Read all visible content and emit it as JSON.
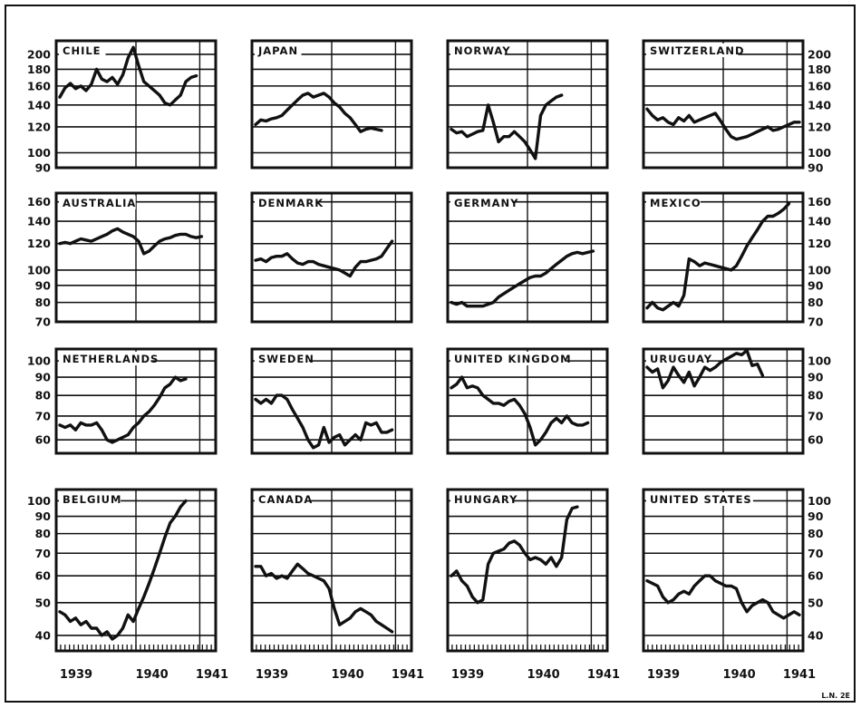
{
  "figure": {
    "x_tick_labels": [
      "1939",
      "1940",
      "1941"
    ],
    "corner_mark": "L.N. 2E"
  },
  "chart_data": [
    {
      "type": "line",
      "title": "CHILE",
      "scale": "log",
      "ylim": [
        90,
        220
      ],
      "yticks": [
        200,
        180,
        160,
        140,
        120,
        100,
        90
      ],
      "ytick_labels_left": [
        "200",
        "180",
        "160",
        "140",
        "120",
        "100",
        "90"
      ],
      "ytick_labels_right": [],
      "x": [
        0,
        1,
        2,
        3,
        4,
        5,
        6,
        7,
        8,
        9,
        10,
        11,
        12,
        13,
        14,
        15,
        16,
        17,
        18,
        19,
        20,
        21,
        22,
        23,
        24,
        25,
        26,
        27,
        28,
        29
      ],
      "values": [
        148,
        158,
        163,
        157,
        160,
        155,
        162,
        180,
        168,
        165,
        170,
        162,
        173,
        195,
        210,
        185,
        165,
        160,
        155,
        150,
        142,
        140,
        145,
        150,
        165,
        170,
        172,
        null,
        null,
        null
      ]
    },
    {
      "type": "line",
      "title": "JAPAN",
      "scale": "log",
      "ylim": [
        90,
        220
      ],
      "yticks": [
        200,
        180,
        160,
        140,
        120,
        100,
        90
      ],
      "ytick_labels_left": [],
      "ytick_labels_right": [],
      "x": [
        0,
        1,
        2,
        3,
        4,
        5,
        6,
        7,
        8,
        9,
        10,
        11,
        12,
        13,
        14,
        15,
        16,
        17,
        18,
        19,
        20,
        21,
        22,
        23,
        24,
        25,
        26,
        27,
        28,
        29
      ],
      "values": [
        122,
        126,
        125,
        127,
        128,
        130,
        135,
        140,
        145,
        150,
        152,
        148,
        150,
        152,
        148,
        142,
        138,
        132,
        128,
        122,
        116,
        118,
        119,
        118,
        117,
        null,
        null,
        null,
        null,
        null
      ]
    },
    {
      "type": "line",
      "title": "NORWAY",
      "scale": "log",
      "ylim": [
        90,
        220
      ],
      "yticks": [
        200,
        180,
        160,
        140,
        120,
        100,
        90
      ],
      "ytick_labels_left": [],
      "ytick_labels_right": [],
      "x": [
        0,
        1,
        2,
        3,
        4,
        5,
        6,
        7,
        8,
        9,
        10,
        11,
        12,
        13,
        14,
        15,
        16,
        17,
        18,
        19,
        20,
        21,
        22,
        23,
        24,
        25,
        26,
        27,
        28,
        29
      ],
      "values": [
        118,
        115,
        116,
        112,
        114,
        116,
        117,
        140,
        124,
        108,
        112,
        112,
        116,
        112,
        108,
        102,
        96,
        130,
        140,
        144,
        148,
        150,
        null,
        null,
        null,
        null,
        null,
        null,
        null,
        null
      ]
    },
    {
      "type": "line",
      "title": "SWITZERLAND",
      "scale": "log",
      "ylim": [
        90,
        220
      ],
      "yticks": [
        200,
        180,
        160,
        140,
        120,
        100,
        90
      ],
      "ytick_labels_left": [],
      "ytick_labels_right": [
        "200",
        "180",
        "160",
        "140",
        "120",
        "100",
        "90"
      ],
      "x": [
        0,
        1,
        2,
        3,
        4,
        5,
        6,
        7,
        8,
        9,
        10,
        11,
        12,
        13,
        14,
        15,
        16,
        17,
        18,
        19,
        20,
        21,
        22,
        23,
        24,
        25,
        26,
        27,
        28,
        29
      ],
      "values": [
        136,
        130,
        126,
        128,
        124,
        122,
        128,
        125,
        130,
        124,
        126,
        128,
        130,
        132,
        125,
        118,
        112,
        110,
        111,
        112,
        114,
        116,
        118,
        120,
        117,
        118,
        120,
        122,
        124,
        124
      ]
    },
    {
      "type": "line",
      "title": "AUSTRALIA",
      "scale": "log",
      "ylim": [
        70,
        170
      ],
      "yticks": [
        160,
        140,
        120,
        100,
        90,
        80,
        70
      ],
      "ytick_labels_left": [
        "160",
        "140",
        "120",
        "100",
        "90",
        "80",
        "70"
      ],
      "ytick_labels_right": [],
      "x": [
        0,
        1,
        2,
        3,
        4,
        5,
        6,
        7,
        8,
        9,
        10,
        11,
        12,
        13,
        14,
        15,
        16,
        17,
        18,
        19,
        20,
        21,
        22,
        23,
        24,
        25,
        26,
        27,
        28,
        29
      ],
      "values": [
        120,
        121,
        120,
        122,
        124,
        123,
        122,
        124,
        126,
        128,
        131,
        133,
        130,
        128,
        126,
        122,
        112,
        114,
        118,
        122,
        124,
        125,
        127,
        128,
        128,
        126,
        125,
        126,
        null,
        null
      ]
    },
    {
      "type": "line",
      "title": "DENMARK",
      "scale": "log",
      "ylim": [
        70,
        170
      ],
      "yticks": [
        160,
        140,
        120,
        100,
        90,
        80,
        70
      ],
      "ytick_labels_left": [],
      "ytick_labels_right": [],
      "x": [
        0,
        1,
        2,
        3,
        4,
        5,
        6,
        7,
        8,
        9,
        10,
        11,
        12,
        13,
        14,
        15,
        16,
        17,
        18,
        19,
        20,
        21,
        22,
        23,
        24,
        25,
        26,
        27,
        28,
        29
      ],
      "values": [
        107,
        108,
        106,
        109,
        110,
        110,
        112,
        108,
        105,
        104,
        106,
        106,
        104,
        103,
        102,
        101,
        100,
        98,
        96,
        102,
        106,
        106,
        107,
        108,
        110,
        116,
        122,
        null,
        null,
        null
      ]
    },
    {
      "type": "line",
      "title": "GERMANY",
      "scale": "log",
      "ylim": [
        70,
        170
      ],
      "yticks": [
        160,
        140,
        120,
        100,
        90,
        80,
        70
      ],
      "ytick_labels_left": [],
      "ytick_labels_right": [],
      "x": [
        0,
        1,
        2,
        3,
        4,
        5,
        6,
        7,
        8,
        9,
        10,
        11,
        12,
        13,
        14,
        15,
        16,
        17,
        18,
        19,
        20,
        21,
        22,
        23,
        24,
        25,
        26,
        27,
        28,
        29
      ],
      "values": [
        80,
        79,
        80,
        78,
        78,
        78,
        78,
        79,
        80,
        83,
        85,
        87,
        89,
        91,
        93,
        95,
        96,
        96,
        98,
        101,
        104,
        107,
        110,
        112,
        113,
        112,
        113,
        114,
        null,
        null
      ]
    },
    {
      "type": "line",
      "title": "MEXICO",
      "scale": "log",
      "ylim": [
        70,
        170
      ],
      "yticks": [
        160,
        140,
        120,
        100,
        90,
        80,
        70
      ],
      "ytick_labels_left": [],
      "ytick_labels_right": [
        "160",
        "140",
        "120",
        "100",
        "90",
        "80",
        "70"
      ],
      "x": [
        0,
        1,
        2,
        3,
        4,
        5,
        6,
        7,
        8,
        9,
        10,
        11,
        12,
        13,
        14,
        15,
        16,
        17,
        18,
        19,
        20,
        21,
        22,
        23,
        24,
        25,
        26,
        27,
        28,
        29
      ],
      "values": [
        77,
        80,
        77,
        76,
        78,
        80,
        78,
        84,
        108,
        106,
        103,
        105,
        104,
        103,
        102,
        101,
        100,
        103,
        110,
        118,
        125,
        132,
        140,
        145,
        145,
        148,
        152,
        158,
        null,
        null
      ]
    },
    {
      "type": "line",
      "title": "NETHERLANDS",
      "scale": "log",
      "ylim": [
        55,
        108
      ],
      "yticks": [
        100,
        90,
        80,
        70,
        60
      ],
      "ytick_labels_left": [
        "100",
        "90",
        "80",
        "70",
        "60"
      ],
      "ytick_labels_right": [],
      "x": [
        0,
        1,
        2,
        3,
        4,
        5,
        6,
        7,
        8,
        9,
        10,
        11,
        12,
        13,
        14,
        15,
        16,
        17,
        18,
        19,
        20,
        21,
        22,
        23,
        24,
        25,
        26,
        27,
        28,
        29
      ],
      "values": [
        66,
        65,
        66,
        64,
        67,
        66,
        66,
        67,
        64,
        60,
        59,
        60,
        61,
        62,
        65,
        67,
        70,
        72,
        75,
        79,
        84,
        86,
        90,
        88,
        89,
        null,
        null,
        null,
        null,
        null
      ]
    },
    {
      "type": "line",
      "title": "SWEDEN",
      "scale": "log",
      "ylim": [
        55,
        108
      ],
      "yticks": [
        100,
        90,
        80,
        70,
        60
      ],
      "ytick_labels_left": [],
      "ytick_labels_right": [],
      "x": [
        0,
        1,
        2,
        3,
        4,
        5,
        6,
        7,
        8,
        9,
        10,
        11,
        12,
        13,
        14,
        15,
        16,
        17,
        18,
        19,
        20,
        21,
        22,
        23,
        24,
        25,
        26,
        27,
        28,
        29
      ],
      "values": [
        78,
        76,
        78,
        76,
        80,
        80,
        78,
        73,
        69,
        65,
        60,
        57,
        58,
        65,
        59,
        61,
        62,
        58,
        60,
        62,
        60,
        67,
        66,
        67,
        63,
        63,
        64,
        null,
        null,
        null
      ]
    },
    {
      "type": "line",
      "title": "UNITED KINGDOM",
      "scale": "log",
      "ylim": [
        55,
        108
      ],
      "yticks": [
        100,
        90,
        80,
        70,
        60
      ],
      "ytick_labels_left": [],
      "ytick_labels_right": [],
      "x": [
        0,
        1,
        2,
        3,
        4,
        5,
        6,
        7,
        8,
        9,
        10,
        11,
        12,
        13,
        14,
        15,
        16,
        17,
        18,
        19,
        20,
        21,
        22,
        23,
        24,
        25,
        26,
        27,
        28,
        29
      ],
      "values": [
        84,
        86,
        90,
        84,
        85,
        84,
        80,
        78,
        76,
        76,
        75,
        77,
        78,
        75,
        71,
        65,
        58,
        60,
        63,
        67,
        69,
        67,
        70,
        67,
        66,
        66,
        67,
        null,
        null,
        null
      ]
    },
    {
      "type": "line",
      "title": "URUGUAY",
      "scale": "log",
      "ylim": [
        55,
        108
      ],
      "yticks": [
        100,
        90,
        80,
        70,
        60
      ],
      "ytick_labels_left": [],
      "ytick_labels_right": [
        "100",
        "90",
        "80",
        "70",
        "60"
      ],
      "x": [
        0,
        1,
        2,
        3,
        4,
        5,
        6,
        7,
        8,
        9,
        10,
        11,
        12,
        13,
        14,
        15,
        16,
        17,
        18,
        19,
        20,
        21,
        22,
        23,
        24,
        25,
        26,
        27,
        28,
        29
      ],
      "values": [
        96,
        93,
        95,
        84,
        88,
        96,
        91,
        87,
        93,
        85,
        90,
        96,
        94,
        96,
        99,
        101,
        103,
        105,
        104,
        107,
        97,
        98,
        91,
        null,
        null,
        null,
        null,
        null,
        null,
        null
      ]
    },
    {
      "type": "line",
      "title": "BELGIUM",
      "scale": "log",
      "ylim": [
        36,
        108
      ],
      "yticks": [
        100,
        90,
        80,
        70,
        60,
        50,
        40
      ],
      "ytick_labels_left": [
        "100",
        "90",
        "80",
        "70",
        "60",
        "50",
        "40"
      ],
      "ytick_labels_right": [],
      "x": [
        0,
        1,
        2,
        3,
        4,
        5,
        6,
        7,
        8,
        9,
        10,
        11,
        12,
        13,
        14,
        15,
        16,
        17,
        18,
        19,
        20,
        21,
        22,
        23,
        24,
        25,
        26,
        27,
        28,
        29
      ],
      "values": [
        47,
        46,
        44,
        45,
        43,
        44,
        42,
        42,
        40,
        41,
        39,
        40,
        42,
        46,
        44,
        48,
        52,
        57,
        63,
        70,
        78,
        86,
        90,
        96,
        100,
        null,
        null,
        null,
        null,
        null
      ]
    },
    {
      "type": "line",
      "title": "CANADA",
      "scale": "log",
      "ylim": [
        36,
        108
      ],
      "yticks": [
        100,
        90,
        80,
        70,
        60,
        50,
        40
      ],
      "ytick_labels_left": [],
      "ytick_labels_right": [],
      "x": [
        0,
        1,
        2,
        3,
        4,
        5,
        6,
        7,
        8,
        9,
        10,
        11,
        12,
        13,
        14,
        15,
        16,
        17,
        18,
        19,
        20,
        21,
        22,
        23,
        24,
        25,
        26,
        27,
        28,
        29
      ],
      "values": [
        64,
        64,
        60,
        61,
        59,
        60,
        59,
        62,
        65,
        63,
        61,
        60,
        59,
        58,
        55,
        48,
        43,
        44,
        45,
        47,
        48,
        47,
        46,
        44,
        43,
        42,
        41,
        null,
        null,
        null
      ]
    },
    {
      "type": "line",
      "title": "HUNGARY",
      "scale": "log",
      "ylim": [
        36,
        108
      ],
      "yticks": [
        100,
        90,
        80,
        70,
        60,
        50,
        40
      ],
      "ytick_labels_left": [],
      "ytick_labels_right": [],
      "x": [
        0,
        1,
        2,
        3,
        4,
        5,
        6,
        7,
        8,
        9,
        10,
        11,
        12,
        13,
        14,
        15,
        16,
        17,
        18,
        19,
        20,
        21,
        22,
        23,
        24,
        25,
        26,
        27,
        28,
        29
      ],
      "values": [
        60,
        62,
        58,
        56,
        52,
        50,
        51,
        65,
        70,
        71,
        72,
        75,
        76,
        74,
        70,
        67,
        68,
        67,
        65,
        68,
        64,
        68,
        88,
        95,
        96,
        null,
        null,
        null,
        null,
        null
      ]
    },
    {
      "type": "line",
      "title": "UNITED STATES",
      "scale": "log",
      "ylim": [
        36,
        108
      ],
      "yticks": [
        100,
        90,
        80,
        70,
        60,
        50,
        40
      ],
      "ytick_labels_left": [],
      "ytick_labels_right": [
        "100",
        "90",
        "80",
        "70",
        "60",
        "50",
        "40"
      ],
      "x": [
        0,
        1,
        2,
        3,
        4,
        5,
        6,
        7,
        8,
        9,
        10,
        11,
        12,
        13,
        14,
        15,
        16,
        17,
        18,
        19,
        20,
        21,
        22,
        23,
        24,
        25,
        26,
        27,
        28,
        29
      ],
      "values": [
        58,
        57,
        56,
        52,
        50,
        51,
        53,
        54,
        53,
        56,
        58,
        60,
        60,
        58,
        57,
        56,
        56,
        55,
        50,
        47,
        49,
        50,
        51,
        50,
        47,
        46,
        45,
        46,
        47,
        46
      ]
    }
  ]
}
